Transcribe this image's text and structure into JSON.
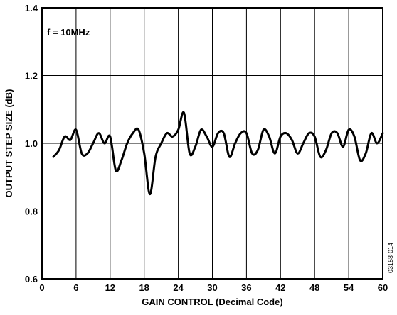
{
  "chart_data": {
    "type": "line",
    "title": "",
    "xlabel": "GAIN CONTROL (Decimal Code)",
    "ylabel": "OUTPUT STEP SIZE (dB)",
    "xlim": [
      0,
      60
    ],
    "ylim": [
      0.6,
      1.4
    ],
    "xticks": [
      "0",
      "6",
      "12",
      "18",
      "24",
      "30",
      "36",
      "42",
      "48",
      "54",
      "60"
    ],
    "yticks": [
      "0.6",
      "0.8",
      "1.0",
      "1.2",
      "1.4"
    ],
    "grid": true,
    "annotation": "f = 10MHz",
    "figure_code": "03158-014",
    "series": [
      {
        "x": [
          2,
          3,
          4,
          5,
          6,
          7,
          8,
          9,
          10,
          11,
          12,
          13,
          14,
          15,
          16,
          17,
          18,
          19,
          20,
          21,
          22,
          23,
          24,
          25,
          26,
          27,
          28,
          29,
          30,
          31,
          32,
          33,
          34,
          35,
          36,
          37,
          38,
          39,
          40,
          41,
          42,
          43,
          44,
          45,
          46,
          47,
          48,
          49,
          50,
          51,
          52,
          53,
          54,
          55,
          56,
          57,
          58,
          59,
          60
        ],
        "values": [
          0.96,
          0.98,
          1.02,
          1.01,
          1.04,
          0.97,
          0.97,
          1.0,
          1.03,
          1.0,
          1.02,
          0.92,
          0.95,
          1.0,
          1.03,
          1.04,
          0.97,
          0.85,
          0.96,
          1.0,
          1.03,
          1.02,
          1.04,
          1.09,
          0.97,
          0.99,
          1.04,
          1.02,
          0.99,
          1.03,
          1.03,
          0.96,
          1.0,
          1.03,
          1.03,
          0.97,
          0.98,
          1.04,
          1.02,
          0.97,
          1.02,
          1.03,
          1.01,
          0.97,
          1.0,
          1.03,
          1.02,
          0.96,
          0.98,
          1.03,
          1.03,
          0.99,
          1.04,
          1.02,
          0.95,
          0.97,
          1.03,
          1.0,
          1.03
        ]
      }
    ]
  }
}
